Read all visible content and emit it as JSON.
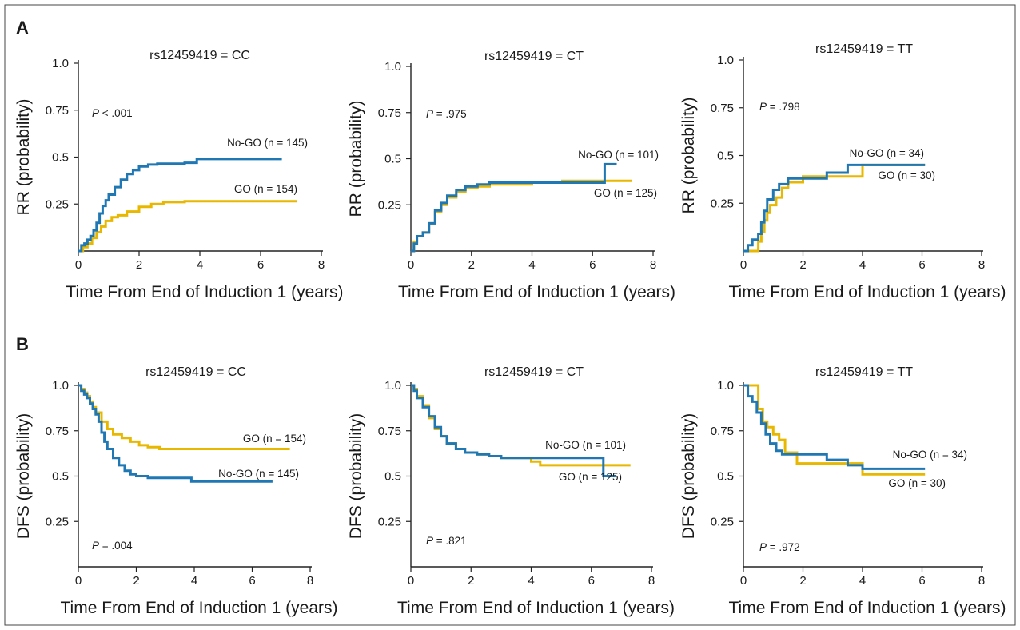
{
  "figure": {
    "panel_labels": [
      "A",
      "B"
    ]
  },
  "colors": {
    "no_go": "#1f77b4",
    "go": "#e8b800"
  },
  "chart_data": [
    {
      "id": "A1",
      "type": "line",
      "row": "A",
      "title": "rs12459419 = CC",
      "xlabel": "Time From End of Induction 1 (years)",
      "ylabel": "RR (probability)",
      "xlim": [
        0,
        8
      ],
      "ylim": [
        0,
        1
      ],
      "xticks": [
        "0",
        "2",
        "4",
        "6",
        "8"
      ],
      "yticks": [
        "0.25",
        "0.5",
        "0.75",
        "1.0"
      ],
      "pvalue_label": "P",
      "pvalue_text": " < .001",
      "series": [
        {
          "name": "No-GO",
          "label": "No-GO (n = 145)",
          "color_key": "no_go",
          "x": [
            0,
            0.1,
            0.2,
            0.3,
            0.4,
            0.5,
            0.6,
            0.7,
            0.8,
            0.9,
            1.0,
            1.2,
            1.4,
            1.6,
            1.8,
            2.0,
            2.3,
            2.6,
            3.0,
            3.5,
            3.9,
            4.5,
            5.5,
            6.7
          ],
          "y": [
            0,
            0.03,
            0.04,
            0.06,
            0.08,
            0.11,
            0.15,
            0.2,
            0.24,
            0.27,
            0.3,
            0.34,
            0.38,
            0.41,
            0.43,
            0.45,
            0.46,
            0.465,
            0.465,
            0.47,
            0.49,
            0.49,
            0.49,
            0.49
          ]
        },
        {
          "name": "GO",
          "label": "GO (n = 154)",
          "color_key": "go",
          "x": [
            0,
            0.15,
            0.3,
            0.45,
            0.6,
            0.75,
            0.9,
            1.1,
            1.3,
            1.6,
            2.0,
            2.4,
            2.8,
            3.5,
            5.0,
            7.2
          ],
          "y": [
            0,
            0.02,
            0.04,
            0.07,
            0.1,
            0.13,
            0.16,
            0.18,
            0.19,
            0.21,
            0.235,
            0.25,
            0.26,
            0.265,
            0.265,
            0.265
          ]
        }
      ]
    },
    {
      "id": "A2",
      "type": "line",
      "row": "A",
      "title": "rs12459419 = CT",
      "xlabel": "Time From End of Induction 1 (years)",
      "ylabel": "RR (probability)",
      "xlim": [
        0,
        8
      ],
      "ylim": [
        0,
        1
      ],
      "xticks": [
        "0",
        "2",
        "4",
        "6",
        "8"
      ],
      "yticks": [
        "0.25",
        "0.5",
        "0.75",
        "1.0"
      ],
      "pvalue_label": "P",
      "pvalue_text": " = .975",
      "series": [
        {
          "name": "No-GO",
          "label": "No-GO (n = 101)",
          "color_key": "no_go",
          "x": [
            0,
            0.1,
            0.2,
            0.4,
            0.6,
            0.8,
            1.0,
            1.2,
            1.5,
            1.8,
            2.2,
            2.6,
            3.0,
            4.0,
            5.0,
            6.3,
            6.4,
            6.8
          ],
          "y": [
            0,
            0.04,
            0.08,
            0.1,
            0.15,
            0.22,
            0.26,
            0.3,
            0.33,
            0.35,
            0.36,
            0.37,
            0.37,
            0.37,
            0.37,
            0.37,
            0.47,
            0.47
          ]
        },
        {
          "name": "GO",
          "label": "GO (n = 125)",
          "color_key": "go",
          "x": [
            0,
            0.1,
            0.2,
            0.4,
            0.6,
            0.8,
            1.0,
            1.2,
            1.5,
            1.8,
            2.2,
            2.6,
            3.0,
            4.0,
            5.0,
            6.0,
            7.3
          ],
          "y": [
            0,
            0.05,
            0.08,
            0.1,
            0.15,
            0.21,
            0.25,
            0.29,
            0.32,
            0.34,
            0.35,
            0.36,
            0.36,
            0.37,
            0.38,
            0.38,
            0.38
          ]
        }
      ]
    },
    {
      "id": "A3",
      "type": "line",
      "row": "A",
      "title": "rs12459419 = TT",
      "xlabel": "Time From End of Induction 1 (years)",
      "ylabel": "RR (probability)",
      "xlim": [
        0,
        8
      ],
      "ylim": [
        0,
        1
      ],
      "xticks": [
        "0",
        "2",
        "4",
        "6",
        "8"
      ],
      "yticks": [
        "0.25",
        "0.5",
        "0.75",
        "1.0"
      ],
      "pvalue_label": "P",
      "pvalue_text": " = .798",
      "series": [
        {
          "name": "No-GO",
          "label": "No-GO (n = 34)",
          "color_key": "no_go",
          "x": [
            0,
            0.15,
            0.3,
            0.5,
            0.6,
            0.7,
            0.8,
            1.0,
            1.2,
            1.5,
            2.0,
            2.8,
            3.5,
            4.0,
            6.1
          ],
          "y": [
            0,
            0.03,
            0.06,
            0.09,
            0.15,
            0.21,
            0.27,
            0.32,
            0.35,
            0.38,
            0.38,
            0.41,
            0.45,
            0.45,
            0.45
          ]
        },
        {
          "name": "GO",
          "label": "GO (n = 30)",
          "color_key": "go",
          "x": [
            0,
            0.4,
            0.5,
            0.6,
            0.7,
            0.8,
            0.9,
            1.1,
            1.3,
            1.5,
            2.0,
            2.8,
            4.0,
            6.1
          ],
          "y": [
            0,
            0,
            0.05,
            0.1,
            0.16,
            0.2,
            0.24,
            0.28,
            0.33,
            0.36,
            0.39,
            0.39,
            0.45,
            0.45
          ]
        }
      ]
    },
    {
      "id": "B1",
      "type": "line",
      "row": "B",
      "title": "rs12459419 = CC",
      "xlabel": "Time From End of Induction 1 (years)",
      "ylabel": "DFS (probability)",
      "xlim": [
        0,
        8
      ],
      "ylim": [
        0,
        1
      ],
      "xticks": [
        "0",
        "2",
        "4",
        "6",
        "8"
      ],
      "yticks": [
        "0.25",
        "0.5",
        "0.75",
        "1.0"
      ],
      "pvalue_label": "P",
      "pvalue_text": " = .004",
      "series": [
        {
          "name": "No-GO",
          "label": "No-GO (n = 145)",
          "color_key": "no_go",
          "x": [
            0,
            0.1,
            0.2,
            0.3,
            0.4,
            0.5,
            0.6,
            0.7,
            0.8,
            0.9,
            1.0,
            1.2,
            1.4,
            1.6,
            1.8,
            2.0,
            2.4,
            2.8,
            3.2,
            3.9,
            4.5,
            6.7
          ],
          "y": [
            1.0,
            0.97,
            0.95,
            0.93,
            0.9,
            0.87,
            0.84,
            0.8,
            0.74,
            0.69,
            0.65,
            0.6,
            0.56,
            0.53,
            0.51,
            0.5,
            0.49,
            0.49,
            0.49,
            0.47,
            0.47,
            0.47
          ]
        },
        {
          "name": "GO",
          "label": "GO (n = 154)",
          "color_key": "go",
          "x": [
            0,
            0.1,
            0.2,
            0.3,
            0.4,
            0.5,
            0.6,
            0.8,
            1.0,
            1.2,
            1.5,
            1.8,
            2.1,
            2.4,
            2.8,
            3.5,
            5.0,
            7.3
          ],
          "y": [
            1.0,
            0.98,
            0.96,
            0.94,
            0.91,
            0.88,
            0.85,
            0.8,
            0.76,
            0.73,
            0.71,
            0.69,
            0.67,
            0.66,
            0.65,
            0.65,
            0.65,
            0.65
          ]
        }
      ]
    },
    {
      "id": "B2",
      "type": "line",
      "row": "B",
      "title": "rs12459419 = CT",
      "xlabel": "Time From End of Induction 1 (years)",
      "ylabel": "DFS (probability)",
      "xlim": [
        0,
        8
      ],
      "ylim": [
        0,
        1
      ],
      "xticks": [
        "0",
        "2",
        "4",
        "6",
        "8"
      ],
      "yticks": [
        "0.25",
        "0.5",
        "0.75",
        "1.0"
      ],
      "pvalue_label": "P",
      "pvalue_text": " = .821",
      "series": [
        {
          "name": "No-GO",
          "label": "No-GO (n = 101)",
          "color_key": "no_go",
          "x": [
            0,
            0.1,
            0.2,
            0.4,
            0.6,
            0.8,
            1.0,
            1.2,
            1.5,
            1.8,
            2.2,
            2.6,
            3.0,
            4.0,
            5.0,
            6.3,
            6.4,
            6.8
          ],
          "y": [
            1.0,
            0.97,
            0.93,
            0.88,
            0.83,
            0.77,
            0.72,
            0.68,
            0.65,
            0.63,
            0.62,
            0.61,
            0.6,
            0.6,
            0.6,
            0.6,
            0.5,
            0.5
          ]
        },
        {
          "name": "GO",
          "label": "GO (n = 125)",
          "color_key": "go",
          "x": [
            0,
            0.1,
            0.2,
            0.4,
            0.6,
            0.8,
            1.0,
            1.2,
            1.5,
            1.8,
            2.2,
            2.6,
            3.0,
            4.0,
            4.3,
            7.3
          ],
          "y": [
            1.0,
            0.98,
            0.94,
            0.89,
            0.82,
            0.76,
            0.72,
            0.68,
            0.65,
            0.63,
            0.62,
            0.61,
            0.6,
            0.58,
            0.56,
            0.56
          ]
        }
      ]
    },
    {
      "id": "B3",
      "type": "line",
      "row": "B",
      "title": "rs12459419 = TT",
      "xlabel": "Time From End of Induction 1 (years)",
      "ylabel": "DFS (probability)",
      "xlim": [
        0,
        8
      ],
      "ylim": [
        0,
        1
      ],
      "xticks": [
        "0",
        "2",
        "4",
        "6",
        "8"
      ],
      "yticks": [
        "0.25",
        "0.5",
        "0.75",
        "1.0"
      ],
      "pvalue_label": "P",
      "pvalue_text": " = .972",
      "series": [
        {
          "name": "No-GO",
          "label": "No-GO (n = 34)",
          "color_key": "no_go",
          "x": [
            0,
            0.15,
            0.3,
            0.45,
            0.6,
            0.75,
            0.9,
            1.1,
            1.3,
            2.0,
            2.8,
            3.5,
            4.0,
            6.1
          ],
          "y": [
            1.0,
            0.94,
            0.91,
            0.85,
            0.79,
            0.73,
            0.68,
            0.64,
            0.62,
            0.62,
            0.59,
            0.56,
            0.54,
            0.54
          ]
        },
        {
          "name": "GO",
          "label": "GO (n = 30)",
          "color_key": "go",
          "x": [
            0,
            0.4,
            0.5,
            0.65,
            0.8,
            1.0,
            1.2,
            1.4,
            1.8,
            2.5,
            3.0,
            4.0,
            6.1
          ],
          "y": [
            1.0,
            1.0,
            0.87,
            0.8,
            0.77,
            0.73,
            0.7,
            0.63,
            0.57,
            0.57,
            0.57,
            0.51,
            0.51
          ]
        }
      ]
    }
  ]
}
